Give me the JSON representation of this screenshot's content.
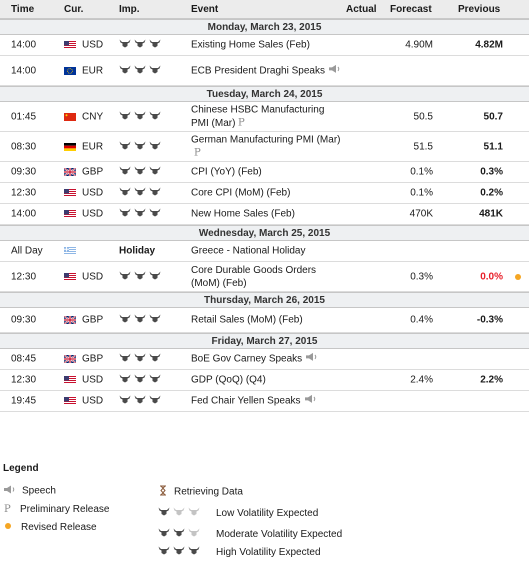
{
  "headers": {
    "time": "Time",
    "cur": "Cur.",
    "imp": "Imp.",
    "event": "Event",
    "actual": "Actual",
    "forecast": "Forecast",
    "previous": "Previous"
  },
  "days": [
    {
      "label": "Monday, March 23, 2015",
      "rows": [
        {
          "time": "14:00",
          "flag": "us",
          "cur": "USD",
          "imp": 3,
          "event": "Existing Home Sales (Feb)",
          "icon": "",
          "forecast": "4.90M",
          "previous": "4.82M",
          "prev_red": false,
          "revised": false
        },
        {
          "time": "14:00",
          "flag": "eu",
          "cur": "EUR",
          "imp": 3,
          "event": "ECB President Draghi Speaks",
          "icon": "speech-icon",
          "forecast": "",
          "previous": "",
          "prev_red": false,
          "revised": false
        }
      ]
    },
    {
      "label": "Tuesday, March 24, 2015",
      "rows": [
        {
          "time": "01:45",
          "flag": "cn",
          "cur": "CNY",
          "imp": 3,
          "event": "Chinese HSBC Manufacturing PMI (Mar)",
          "icon": "preliminary-icon",
          "forecast": "50.5",
          "previous": "50.7",
          "prev_red": false,
          "revised": false
        },
        {
          "time": "08:30",
          "flag": "de",
          "cur": "EUR",
          "imp": 3,
          "event": "German Manufacturing PMI (Mar)",
          "icon": "preliminary-icon",
          "forecast": "51.5",
          "previous": "51.1",
          "prev_red": false,
          "revised": false
        },
        {
          "time": "09:30",
          "flag": "gb",
          "cur": "GBP",
          "imp": 3,
          "event": "CPI (YoY) (Feb)",
          "icon": "",
          "forecast": "0.1%",
          "previous": "0.3%",
          "prev_red": false,
          "revised": false
        },
        {
          "time": "12:30",
          "flag": "us",
          "cur": "USD",
          "imp": 3,
          "event": "Core CPI (MoM) (Feb)",
          "icon": "",
          "forecast": "0.1%",
          "previous": "0.2%",
          "prev_red": false,
          "revised": false
        },
        {
          "time": "14:00",
          "flag": "us",
          "cur": "USD",
          "imp": 3,
          "event": "New Home Sales (Feb)",
          "icon": "",
          "forecast": "470K",
          "previous": "481K",
          "prev_red": false,
          "revised": false
        }
      ]
    },
    {
      "label": "Wednesday, March 25, 2015",
      "rows": [
        {
          "time": "All Day",
          "flag": "gr",
          "cur": "",
          "holiday": "Holiday",
          "imp": 0,
          "event": "Greece - National Holiday",
          "icon": "",
          "forecast": "",
          "previous": "",
          "prev_red": false,
          "revised": false
        },
        {
          "time": "12:30",
          "flag": "us",
          "cur": "USD",
          "imp": 3,
          "event": "Core Durable Goods Orders (MoM) (Feb)",
          "icon": "",
          "forecast": "0.3%",
          "previous": "0.0%",
          "prev_red": true,
          "revised": true
        }
      ]
    },
    {
      "label": "Thursday, March 26, 2015",
      "rows": [
        {
          "time": "09:30",
          "flag": "gb",
          "cur": "GBP",
          "imp": 3,
          "event": "Retail Sales (MoM) (Feb)",
          "icon": "",
          "forecast": "0.4%",
          "previous": "-0.3%",
          "prev_red": false,
          "revised": false
        }
      ]
    },
    {
      "label": "Friday, March 27, 2015",
      "rows": [
        {
          "time": "08:45",
          "flag": "gb",
          "cur": "GBP",
          "imp": 3,
          "event": "BoE Gov Carney Speaks",
          "icon": "speech-icon",
          "forecast": "",
          "previous": "",
          "prev_red": false,
          "revised": false
        },
        {
          "time": "12:30",
          "flag": "us",
          "cur": "USD",
          "imp": 3,
          "event": "GDP (QoQ) (Q4)",
          "icon": "",
          "forecast": "2.4%",
          "previous": "2.2%",
          "prev_red": false,
          "revised": false
        },
        {
          "time": "19:45",
          "flag": "us",
          "cur": "USD",
          "imp": 3,
          "event": "Fed Chair Yellen Speaks",
          "icon": "speech-icon",
          "forecast": "",
          "previous": "",
          "prev_red": false,
          "revised": false
        }
      ]
    }
  ],
  "legend": {
    "title": "Legend",
    "speech": "Speech",
    "preliminary": "Preliminary Release",
    "revised": "Revised Release",
    "retrieving": "Retrieving Data",
    "low": "Low Volatility Expected",
    "moderate": "Moderate Volatility Expected",
    "high": "High Volatility Expected"
  },
  "colors": {
    "accent_red": "#e8202a",
    "revised_dot": "#f5a623",
    "bull_dark": "#4a4a4a",
    "bull_light": "#c4c4c4"
  }
}
